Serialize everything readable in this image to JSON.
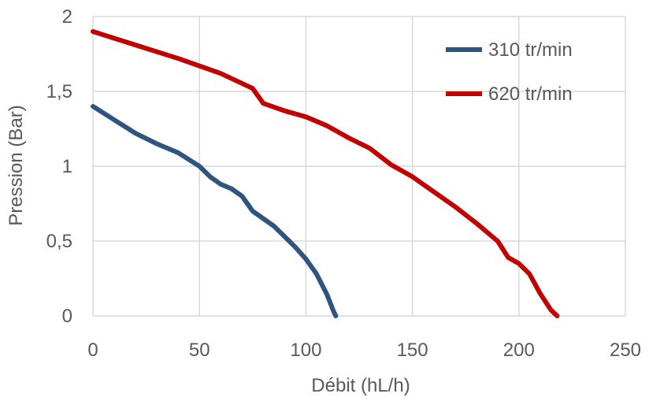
{
  "chart_data": {
    "type": "line",
    "title": "",
    "xlabel": "Débit (hL/h)",
    "ylabel": "Pression (Bar)",
    "xlim": [
      0,
      250
    ],
    "ylim": [
      0,
      2
    ],
    "x_ticks": [
      0,
      50,
      100,
      150,
      200,
      250
    ],
    "x_tick_labels": [
      "0",
      "50",
      "100",
      "150",
      "200",
      "250"
    ],
    "y_ticks": [
      0,
      0.5,
      1,
      1.5,
      2
    ],
    "y_tick_labels": [
      "0",
      "0,5",
      "1",
      "1,5",
      "2"
    ],
    "grid": true,
    "legend_position": "top-right",
    "series": [
      {
        "name": "310 tr/min",
        "color": "#2F5480",
        "points": [
          [
            0,
            1.4
          ],
          [
            10,
            1.31
          ],
          [
            20,
            1.22
          ],
          [
            30,
            1.15
          ],
          [
            40,
            1.09
          ],
          [
            50,
            1.0
          ],
          [
            55,
            0.93
          ],
          [
            60,
            0.88
          ],
          [
            65,
            0.85
          ],
          [
            70,
            0.8
          ],
          [
            75,
            0.7
          ],
          [
            80,
            0.65
          ],
          [
            85,
            0.6
          ],
          [
            90,
            0.53
          ],
          [
            95,
            0.46
          ],
          [
            100,
            0.38
          ],
          [
            105,
            0.28
          ],
          [
            110,
            0.14
          ],
          [
            113,
            0.03
          ],
          [
            114,
            0
          ]
        ]
      },
      {
        "name": "620 tr/min",
        "color": "#C00000",
        "points": [
          [
            0,
            1.9
          ],
          [
            20,
            1.81
          ],
          [
            40,
            1.72
          ],
          [
            60,
            1.62
          ],
          [
            75,
            1.52
          ],
          [
            80,
            1.42
          ],
          [
            90,
            1.37
          ],
          [
            100,
            1.33
          ],
          [
            110,
            1.27
          ],
          [
            120,
            1.19
          ],
          [
            130,
            1.12
          ],
          [
            140,
            1.01
          ],
          [
            150,
            0.93
          ],
          [
            160,
            0.83
          ],
          [
            170,
            0.73
          ],
          [
            180,
            0.62
          ],
          [
            190,
            0.5
          ],
          [
            195,
            0.39
          ],
          [
            200,
            0.35
          ],
          [
            205,
            0.28
          ],
          [
            210,
            0.15
          ],
          [
            215,
            0.04
          ],
          [
            218,
            0
          ]
        ]
      }
    ]
  }
}
